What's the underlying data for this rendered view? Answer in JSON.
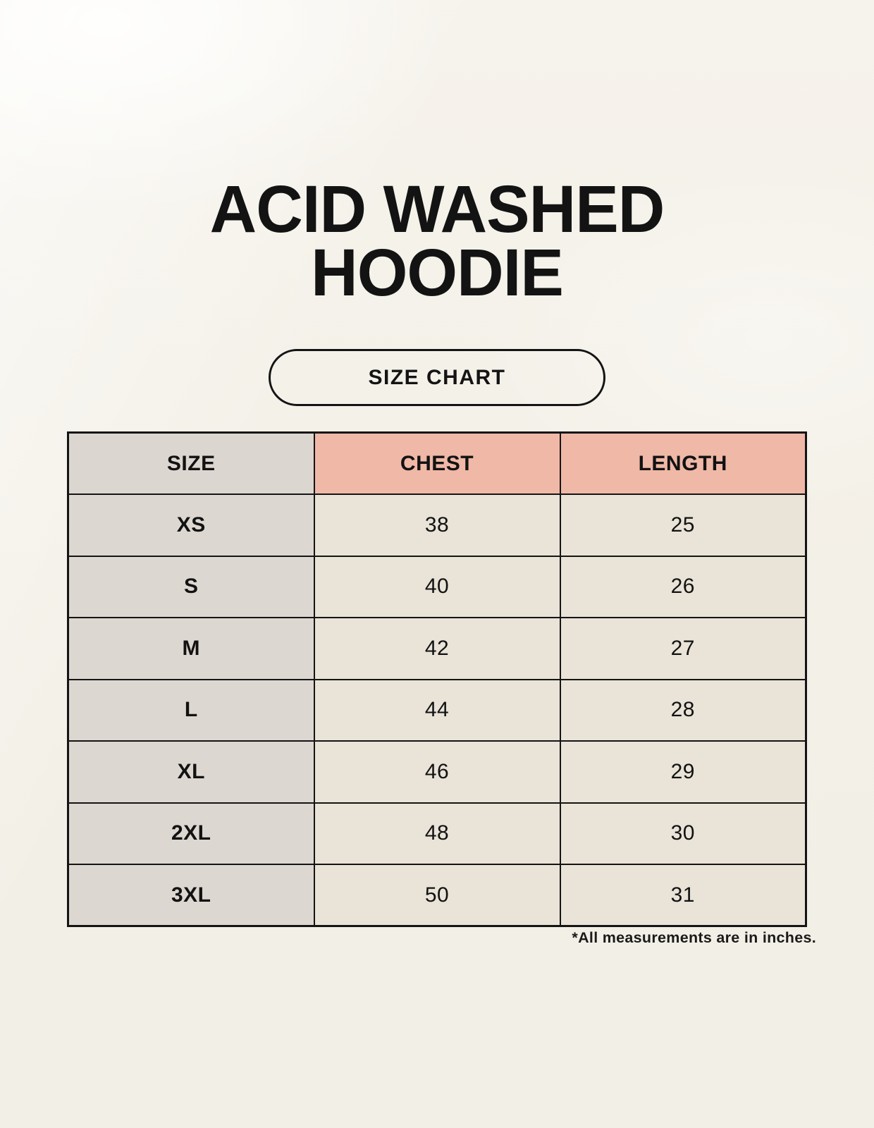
{
  "page": {
    "title_line1": "ACID WASHED",
    "title_line2": "HOODIE",
    "size_chart_button_label": "SIZE CHART",
    "footnote": "*All measurements are in inches."
  },
  "table": {
    "headers": [
      "SIZE",
      "CHEST",
      "LENGTH"
    ],
    "rows": [
      {
        "size": "XS",
        "chest": "38",
        "length": "25"
      },
      {
        "size": "S",
        "chest": "40",
        "length": "26"
      },
      {
        "size": "M",
        "chest": "42",
        "length": "27"
      },
      {
        "size": "L",
        "chest": "44",
        "length": "28"
      },
      {
        "size": "XL",
        "chest": "46",
        "length": "29"
      },
      {
        "size": "2XL",
        "chest": "48",
        "length": "30"
      },
      {
        "size": "3XL",
        "chest": "50",
        "length": "31"
      }
    ],
    "units_note": "inches"
  },
  "colors": {
    "background": "#f3f0e7",
    "header_pink": "#f0b8a7",
    "column_gray": "#dcd6d0",
    "cell_cream": "#e9e3d8",
    "border_black": "#141414",
    "text_black": "#131313"
  }
}
